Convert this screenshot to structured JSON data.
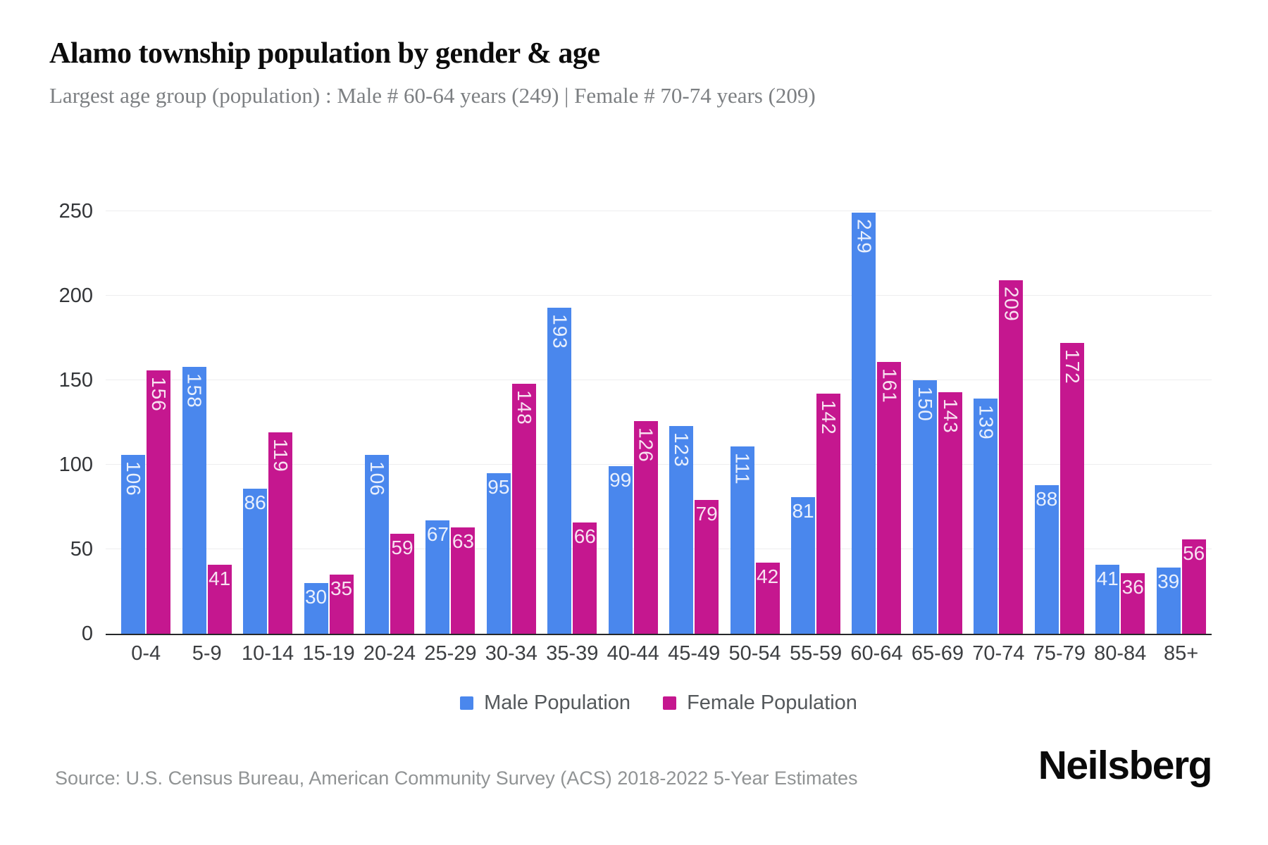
{
  "header": {
    "title": "Alamo township population by gender & age",
    "subtitle": "Largest age group (population) : Male # 60-64 years (249) | Female # 70-74 years (209)"
  },
  "chart_data": {
    "type": "bar",
    "title": "Alamo township population by gender & age",
    "categories": [
      "0-4",
      "5-9",
      "10-14",
      "15-19",
      "20-24",
      "25-29",
      "30-34",
      "35-39",
      "40-44",
      "45-49",
      "50-54",
      "55-59",
      "60-64",
      "65-69",
      "70-74",
      "75-79",
      "80-84",
      "85+"
    ],
    "series": [
      {
        "name": "Male Population",
        "color": "#4A87ED",
        "values": [
          106,
          158,
          86,
          30,
          106,
          67,
          95,
          193,
          99,
          123,
          111,
          81,
          249,
          150,
          139,
          88,
          41,
          39
        ]
      },
      {
        "name": "Female Population",
        "color": "#C5178F",
        "values": [
          156,
          41,
          119,
          35,
          59,
          63,
          148,
          66,
          126,
          79,
          42,
          142,
          161,
          143,
          209,
          172,
          36,
          56
        ]
      }
    ],
    "xlabel": "",
    "ylabel": "",
    "ylim": [
      0,
      250
    ],
    "yticks": [
      0,
      50,
      100,
      150,
      200,
      250
    ],
    "grid": true,
    "legend_position": "bottom"
  },
  "colors": {
    "male": "#4A87ED",
    "female": "#C5178F",
    "gridline": "#EDEDEF",
    "axis_line": "#26282A"
  },
  "footer": {
    "source": "Source: U.S. Census Bureau, American Community Survey (ACS) 2018-2022 5-Year Estimates",
    "logo": "Neilsberg"
  }
}
